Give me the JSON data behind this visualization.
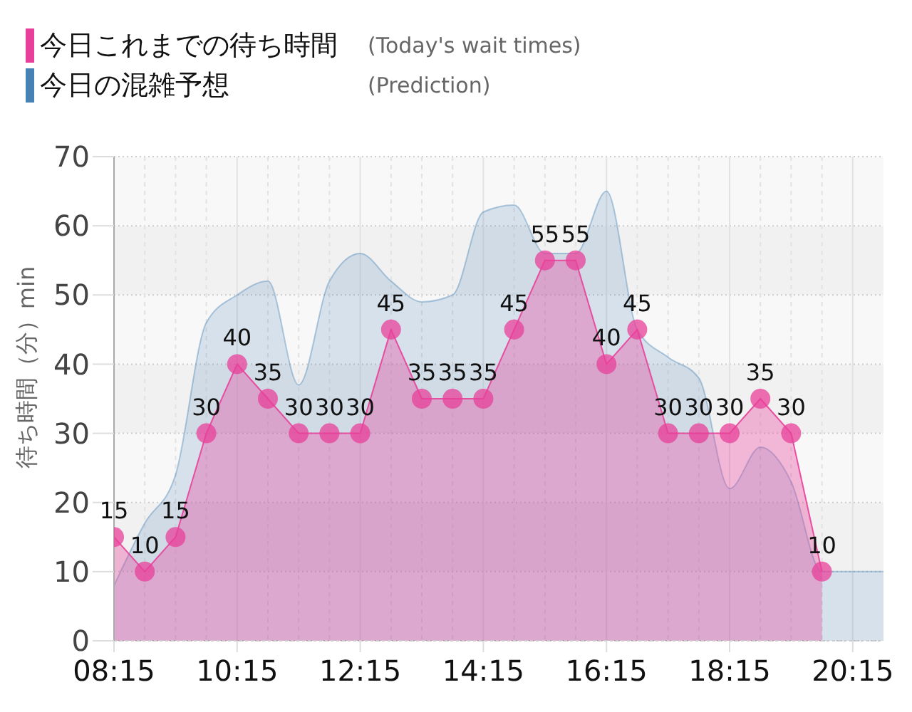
{
  "chart_data": {
    "type": "area",
    "ylabel": "待ち時間（分）min",
    "x": [
      8.25,
      8.75,
      9.25,
      9.75,
      10.25,
      10.75,
      11.25,
      11.75,
      12.25,
      12.75,
      13.25,
      13.75,
      14.25,
      14.75,
      15.25,
      15.75,
      16.25,
      16.75,
      17.25,
      17.75,
      18.25,
      18.75,
      19.25,
      19.75,
      20.25,
      20.75
    ],
    "series": [
      {
        "name": "今日これまでの待ち時間 (Today's wait times)",
        "color": "#e8409a",
        "marker": "circle",
        "values": [
          15,
          10,
          15,
          30,
          40,
          35,
          30,
          30,
          30,
          45,
          35,
          35,
          35,
          45,
          55,
          55,
          40,
          45,
          30,
          30,
          30,
          35,
          30,
          10,
          null,
          null
        ],
        "value_labels": [
          "15",
          "10",
          "15",
          "30",
          "40",
          "35",
          "30",
          "30",
          "30",
          "45",
          "35",
          "35",
          "35",
          "45",
          "55",
          "55",
          "40",
          "45",
          "30",
          "30",
          "30",
          "35",
          "30",
          "10",
          null,
          null
        ]
      },
      {
        "name": "今日の混雑予想 (Prediction)",
        "color": "#4682b4",
        "values": [
          8,
          17,
          24,
          46,
          50,
          52,
          37,
          52,
          56,
          52,
          49,
          50,
          62,
          63,
          56,
          56,
          65,
          45,
          41,
          38,
          22,
          28,
          23,
          10,
          10,
          10
        ]
      }
    ],
    "xlim": [
      8.25,
      20.75
    ],
    "xticks": [
      {
        "value": 8.25,
        "label": "08:15"
      },
      {
        "value": 8.75,
        "label": null
      },
      {
        "value": 9.25,
        "label": null
      },
      {
        "value": 9.75,
        "label": null
      },
      {
        "value": 10.25,
        "label": "10:15"
      },
      {
        "value": 10.75,
        "label": null
      },
      {
        "value": 11.25,
        "label": null
      },
      {
        "value": 11.75,
        "label": null
      },
      {
        "value": 12.25,
        "label": "12:15"
      },
      {
        "value": 12.75,
        "label": null
      },
      {
        "value": 13.25,
        "label": null
      },
      {
        "value": 13.75,
        "label": null
      },
      {
        "value": 14.25,
        "label": "14:15"
      },
      {
        "value": 14.75,
        "label": null
      },
      {
        "value": 15.25,
        "label": null
      },
      {
        "value": 15.75,
        "label": null
      },
      {
        "value": 16.25,
        "label": "16:15"
      },
      {
        "value": 16.75,
        "label": null
      },
      {
        "value": 17.25,
        "label": null
      },
      {
        "value": 17.75,
        "label": null
      },
      {
        "value": 18.25,
        "label": "18:15"
      },
      {
        "value": 18.75,
        "label": null
      },
      {
        "value": 19.25,
        "label": null
      },
      {
        "value": 19.75,
        "label": null
      },
      {
        "value": 20.25,
        "label": "20:15"
      }
    ],
    "ylim": [
      0,
      70
    ],
    "yticks": [
      0,
      10,
      20,
      30,
      40,
      50,
      60,
      70
    ],
    "grid": true,
    "legend": "top left"
  }
}
